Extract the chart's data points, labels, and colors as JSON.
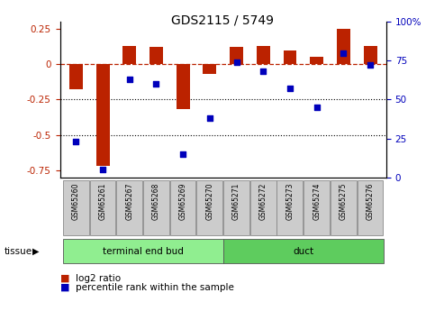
{
  "title": "GDS2115 / 5749",
  "samples": [
    "GSM65260",
    "GSM65261",
    "GSM65267",
    "GSM65268",
    "GSM65269",
    "GSM65270",
    "GSM65271",
    "GSM65272",
    "GSM65273",
    "GSM65274",
    "GSM65275",
    "GSM65276"
  ],
  "log2_ratio": [
    -0.18,
    -0.72,
    0.13,
    0.12,
    -0.32,
    -0.07,
    0.12,
    0.13,
    0.1,
    0.05,
    0.25,
    0.13
  ],
  "percentile_rank": [
    23,
    5,
    63,
    60,
    15,
    38,
    74,
    68,
    57,
    45,
    80,
    72
  ],
  "groups": [
    {
      "label": "terminal end bud",
      "start": 0,
      "end": 6,
      "color": "#90EE90"
    },
    {
      "label": "duct",
      "start": 6,
      "end": 12,
      "color": "#5ECC5E"
    }
  ],
  "bar_color": "#BB2200",
  "dot_color": "#0000BB",
  "ylim_left": [
    -0.8,
    0.3
  ],
  "ylim_right": [
    0,
    100
  ],
  "yticks_left": [
    0.25,
    0.0,
    -0.25,
    -0.5,
    -0.75
  ],
  "yticks_right": [
    100,
    75,
    50,
    25,
    0
  ],
  "hline_y": 0,
  "dotted_lines": [
    -0.25,
    -0.5
  ],
  "legend_items": [
    {
      "label": "log2 ratio",
      "color": "#BB2200"
    },
    {
      "label": "percentile rank within the sample",
      "color": "#0000BB"
    }
  ],
  "tissue_label": "tissue",
  "bar_width": 0.5
}
